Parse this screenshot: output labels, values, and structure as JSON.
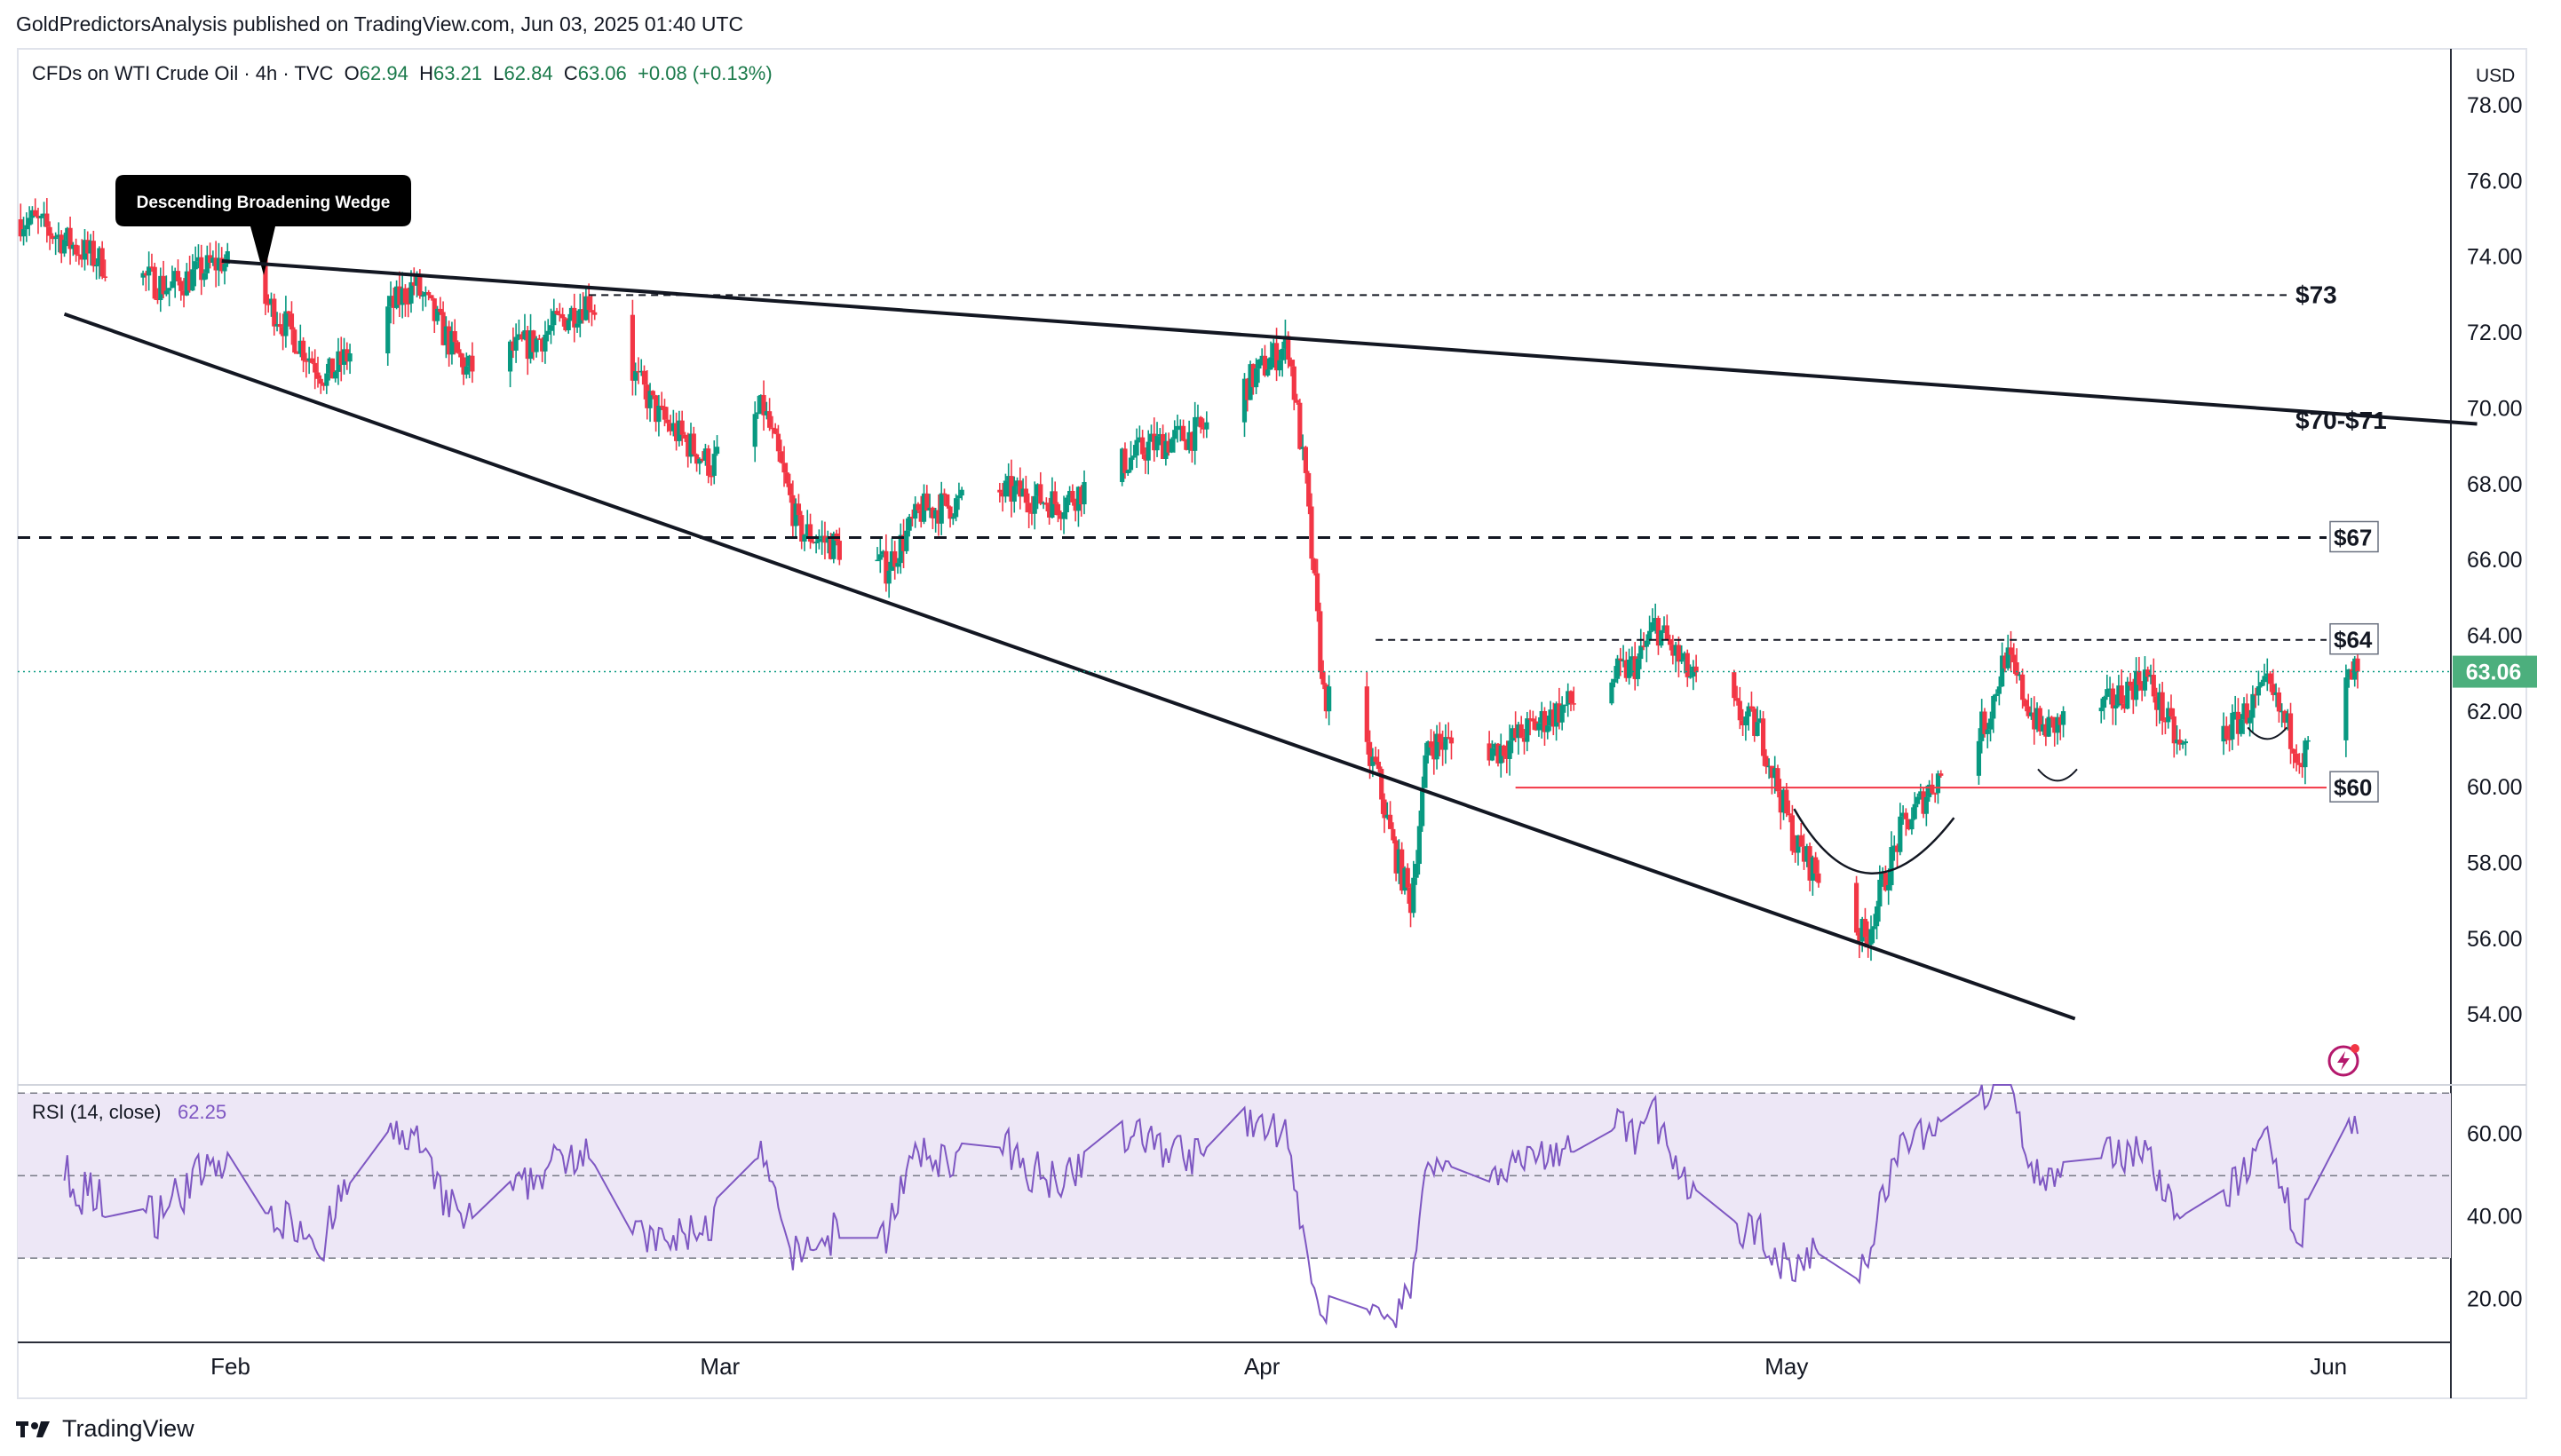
{
  "header": {
    "publisher": "GoldPredictorsAnalysis published on TradingView.com, Jun 03, 2025 01:40 UTC",
    "symbol": "CFDs on WTI Crude Oil · 4h · TVC",
    "open_label": "O",
    "open": "62.94",
    "high_label": "H",
    "high": "63.21",
    "low_label": "L",
    "low": "62.84",
    "close_label": "C",
    "close": "63.06",
    "change": "+0.08 (+0.13%)",
    "currency": "USD"
  },
  "footer": {
    "brand": "TradingView"
  },
  "colors": {
    "up": "#089981",
    "down": "#f23645",
    "rsi": "#7e57c2",
    "rsi_band": "#ede7f6",
    "price_badge": "#4caf7d",
    "support_line": "#f23645"
  },
  "chart_data": {
    "type": "candlestick",
    "symbol": "CFDs on WTI Crude Oil",
    "timeframe": "4h",
    "x_ticks": [
      "Feb",
      "Mar",
      "Apr",
      "May",
      "Jun"
    ],
    "y_ticks": [
      "54.00",
      "56.00",
      "58.00",
      "60.00",
      "62.00",
      "64.00",
      "66.00",
      "68.00",
      "70.00",
      "72.00",
      "74.00",
      "76.00",
      "78.00"
    ],
    "ylim": [
      52.2,
      79.5
    ],
    "last_price": "63.06",
    "trend_anchors": [
      {
        "date": "2025-01-20",
        "close": 75.0
      },
      {
        "date": "2025-01-24",
        "close": 73.9
      },
      {
        "date": "2025-01-28",
        "close": 73.2
      },
      {
        "date": "2025-01-31",
        "close": 73.9
      },
      {
        "date": "2025-02-03",
        "close": 72.6
      },
      {
        "date": "2025-02-06",
        "close": 70.8
      },
      {
        "date": "2025-02-11",
        "close": 73.3
      },
      {
        "date": "2025-02-14",
        "close": 71.0
      },
      {
        "date": "2025-02-18",
        "close": 71.8
      },
      {
        "date": "2025-02-21",
        "close": 72.9
      },
      {
        "date": "2025-02-25",
        "close": 69.8
      },
      {
        "date": "2025-02-28",
        "close": 68.5
      },
      {
        "date": "2025-03-03",
        "close": 70.0
      },
      {
        "date": "2025-03-05",
        "close": 66.8
      },
      {
        "date": "2025-03-10",
        "close": 65.8
      },
      {
        "date": "2025-03-12",
        "close": 67.3
      },
      {
        "date": "2025-03-17",
        "close": 67.8
      },
      {
        "date": "2025-03-20",
        "close": 67.5
      },
      {
        "date": "2025-03-25",
        "close": 69.0
      },
      {
        "date": "2025-03-28",
        "close": 69.4
      },
      {
        "date": "2025-04-01",
        "close": 71.3
      },
      {
        "date": "2025-04-02",
        "close": 71.7
      },
      {
        "date": "2025-04-03",
        "close": 68.0
      },
      {
        "date": "2025-04-04",
        "close": 62.5
      },
      {
        "date": "2025-04-07",
        "close": 60.5
      },
      {
        "date": "2025-04-08",
        "close": 58.4
      },
      {
        "date": "2025-04-09",
        "close": 57.0
      },
      {
        "date": "2025-04-10",
        "close": 61.2
      },
      {
        "date": "2025-04-14",
        "close": 61.0
      },
      {
        "date": "2025-04-17",
        "close": 61.9
      },
      {
        "date": "2025-04-22",
        "close": 63.3
      },
      {
        "date": "2025-04-23",
        "close": 64.3
      },
      {
        "date": "2025-04-25",
        "close": 62.9
      },
      {
        "date": "2025-04-29",
        "close": 61.5
      },
      {
        "date": "2025-05-01",
        "close": 58.5
      },
      {
        "date": "2025-05-05",
        "close": 56.0
      },
      {
        "date": "2025-05-07",
        "close": 58.8
      },
      {
        "date": "2025-05-09",
        "close": 60.2
      },
      {
        "date": "2025-05-12",
        "close": 61.8
      },
      {
        "date": "2025-05-13",
        "close": 63.5
      },
      {
        "date": "2025-05-15",
        "close": 61.5
      },
      {
        "date": "2025-05-19",
        "close": 62.2
      },
      {
        "date": "2025-05-21",
        "close": 63.0
      },
      {
        "date": "2025-05-23",
        "close": 61.0
      },
      {
        "date": "2025-05-26",
        "close": 61.6
      },
      {
        "date": "2025-05-28",
        "close": 62.6
      },
      {
        "date": "2025-05-30",
        "close": 60.8
      },
      {
        "date": "2025-06-02",
        "close": 63.06
      }
    ],
    "annotations": [
      {
        "type": "callout",
        "text": "Descending Broadening Wedge"
      },
      {
        "type": "trendline",
        "role": "wedge upper",
        "from": {
          "date": "2025-01-31",
          "price": 73.9
        },
        "to": {
          "date": "2025-06-09",
          "price": 69.6
        }
      },
      {
        "type": "trendline",
        "role": "wedge lower",
        "from": {
          "date": "2025-01-22",
          "price": 72.5
        },
        "to": {
          "date": "2025-05-17",
          "price": 53.9
        }
      },
      {
        "type": "hline",
        "label": "$73",
        "price": 73.0,
        "style": "dashed"
      },
      {
        "type": "label",
        "text": "$70-$71",
        "price": 69.7
      },
      {
        "type": "hline",
        "label": "$67",
        "price": 66.6,
        "style": "dashed",
        "boxed": true
      },
      {
        "type": "hline",
        "label": "$64",
        "price": 63.9,
        "style": "dashed",
        "boxed": true
      },
      {
        "type": "hline",
        "label": "$60",
        "price": 60.0,
        "style": "solid",
        "color": "#f23645",
        "boxed": true
      },
      {
        "type": "arc",
        "role": "rounding bottom",
        "around": "2025-05-05"
      }
    ],
    "rsi": {
      "label": "RSI (14, close)",
      "last": "62.25",
      "period": 14,
      "upper": 70,
      "middle": 50,
      "lower": 30,
      "y_ticks": [
        "20.00",
        "40.00",
        "60.00"
      ],
      "ylim": [
        10,
        72
      ]
    }
  }
}
